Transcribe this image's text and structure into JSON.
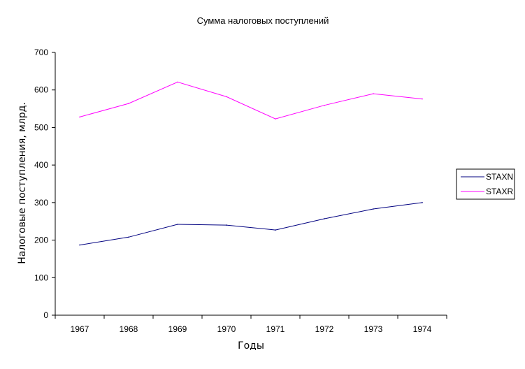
{
  "chart_data": {
    "type": "line",
    "title": "Сумма налоговых поступлений",
    "xlabel": "Годы",
    "ylabel": "Налоговые поступления, млрд.",
    "categories": [
      "1967",
      "1968",
      "1969",
      "1970",
      "1971",
      "1972",
      "1973",
      "1974"
    ],
    "ylim": [
      0,
      700
    ],
    "yticks": [
      "0",
      "100",
      "200",
      "300",
      "400",
      "500",
      "600",
      "700"
    ],
    "grid": false,
    "legend_position": "right",
    "series": [
      {
        "name": "STAXN",
        "color": "#000080",
        "values": [
          187,
          208,
          242,
          240,
          227,
          257,
          283,
          300
        ]
      },
      {
        "name": "STAXR",
        "color": "#ff00ff",
        "values": [
          528,
          564,
          621,
          582,
          523,
          559,
          590,
          576
        ]
      }
    ]
  }
}
